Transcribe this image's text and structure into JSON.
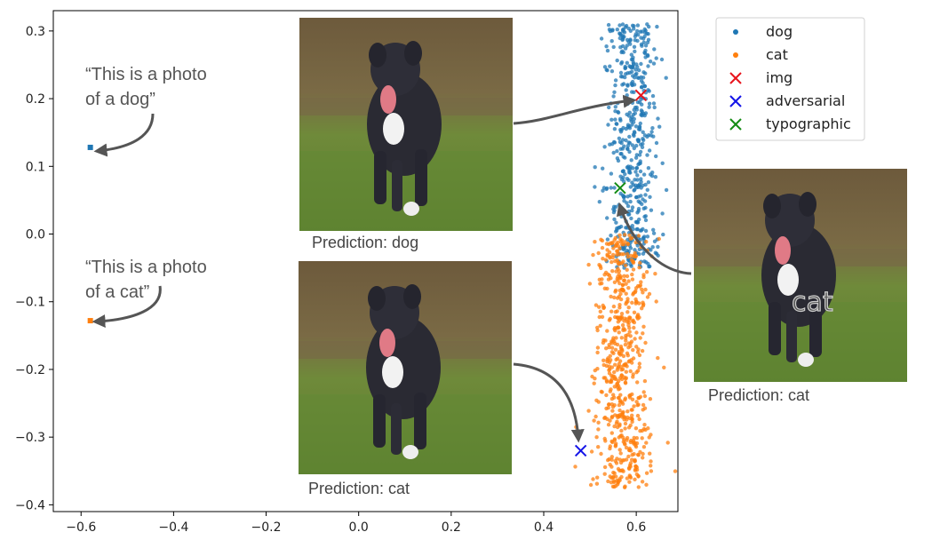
{
  "chart_data": {
    "type": "scatter",
    "xlim": [
      -0.66,
      0.69
    ],
    "ylim": [
      -0.41,
      0.33
    ],
    "x_ticks": [
      -0.6,
      -0.4,
      -0.2,
      0.0,
      0.2,
      0.4,
      0.6
    ],
    "x_tick_labels": [
      "−0.6",
      "−0.4",
      "−0.2",
      "0.0",
      "0.2",
      "0.4",
      "0.6"
    ],
    "y_ticks": [
      0.3,
      0.2,
      0.1,
      0.0,
      -0.1,
      -0.2,
      -0.3,
      -0.4
    ],
    "y_tick_labels": [
      "0.3",
      "0.2",
      "0.1",
      "0.0",
      "−0.1",
      "−0.2",
      "−0.3",
      "−0.4"
    ],
    "grid": false,
    "legend_position": "top-right",
    "series": [
      {
        "name": "dog",
        "color": "#1f77b4",
        "marker": "dot",
        "cloud": {
          "center_x": 0.59,
          "spread_x": 0.028,
          "y_range": [
            -0.05,
            0.31
          ],
          "count": 520
        }
      },
      {
        "name": "cat",
        "color": "#ff7f0e",
        "marker": "dot",
        "cloud": {
          "center_x": 0.57,
          "spread_x": 0.03,
          "y_range": [
            -0.375,
            0.0
          ],
          "count": 620
        }
      },
      {
        "name": "img",
        "color": "#e8141c",
        "marker": "x",
        "points": [
          [
            0.61,
            0.205
          ]
        ]
      },
      {
        "name": "adversarial",
        "color": "#1414e8",
        "marker": "x",
        "points": [
          [
            0.48,
            -0.32
          ]
        ]
      },
      {
        "name": "typographic",
        "color": "#148c14",
        "marker": "x",
        "points": [
          [
            0.565,
            0.068
          ]
        ]
      }
    ],
    "text_embeddings": [
      {
        "x": -0.58,
        "y": 0.128,
        "color": "#1f77b4",
        "text_line1": "“This is a photo",
        "text_line2": "of a dog”"
      },
      {
        "x": -0.58,
        "y": -0.128,
        "color": "#ff7f0e",
        "text_line1": "“This is a photo",
        "text_line2": "of a cat”"
      }
    ],
    "inset_images": [
      {
        "name": "original",
        "caption": "Prediction: dog"
      },
      {
        "name": "adversarial",
        "caption": "Prediction: cat"
      },
      {
        "name": "typographic",
        "caption": "Prediction: cat",
        "overlay_text": "cat"
      }
    ]
  }
}
